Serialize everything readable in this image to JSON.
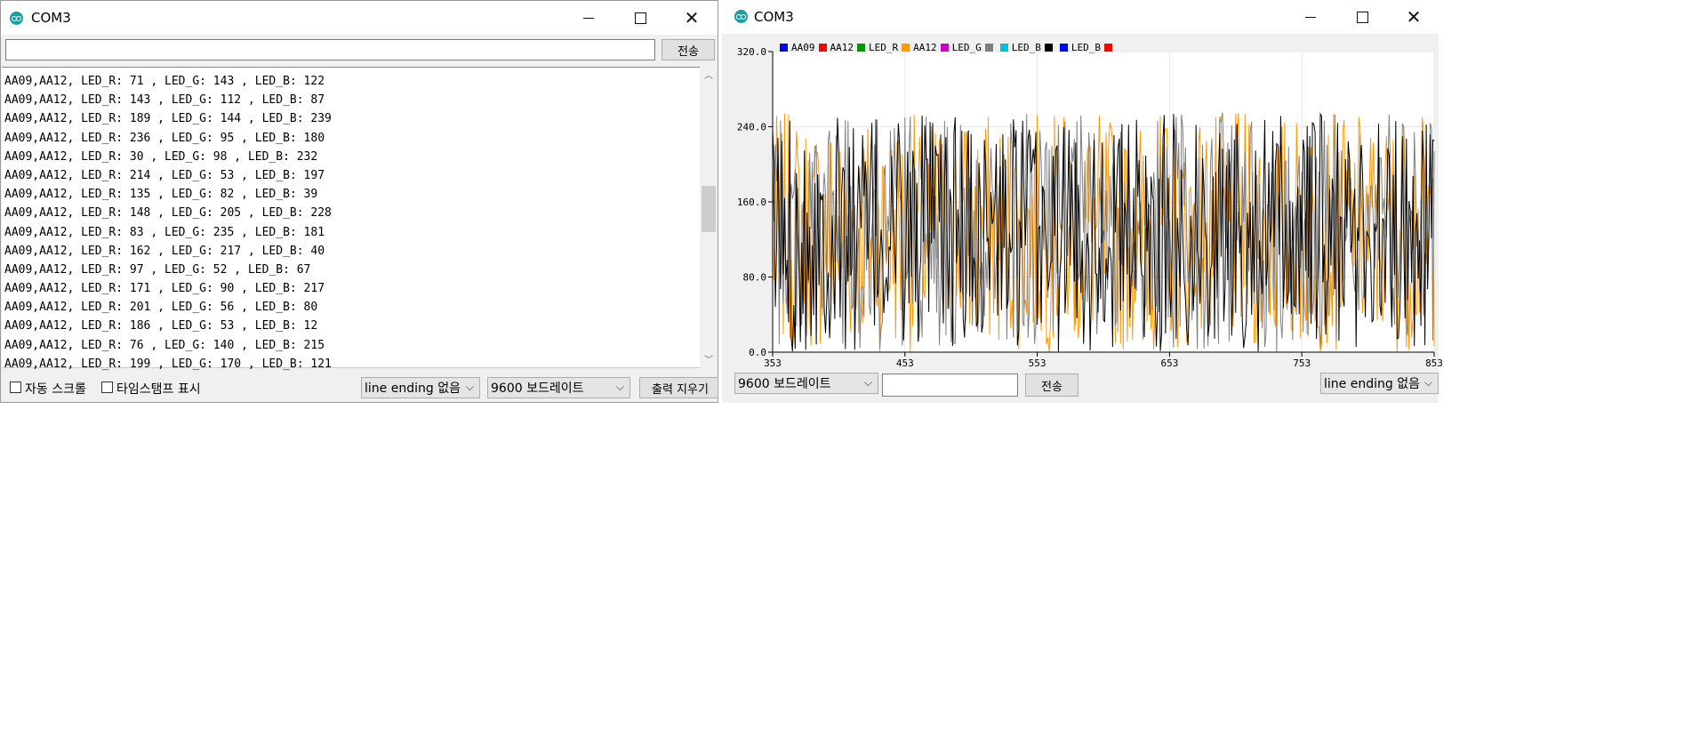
{
  "serial_monitor": {
    "title": "COM3",
    "send_input_value": "",
    "send_label": "전송",
    "lines": [
      "AA09,AA12, LED_R: 71 , LED_G: 143 , LED_B: 122",
      "AA09,AA12, LED_R: 143 , LED_G: 112 , LED_B: 87",
      "AA09,AA12, LED_R: 189 , LED_G: 144 , LED_B: 239",
      "AA09,AA12, LED_R: 236 , LED_G: 95 , LED_B: 180",
      "AA09,AA12, LED_R: 30 , LED_G: 98 , LED_B: 232",
      "AA09,AA12, LED_R: 214 , LED_G: 53 , LED_B: 197",
      "AA09,AA12, LED_R: 135 , LED_G: 82 , LED_B: 39",
      "AA09,AA12, LED_R: 148 , LED_G: 205 , LED_B: 228",
      "AA09,AA12, LED_R: 83 , LED_G: 235 , LED_B: 181",
      "AA09,AA12, LED_R: 162 , LED_G: 217 , LED_B: 40",
      "AA09,AA12, LED_R: 97 , LED_G: 52 , LED_B: 67",
      "AA09,AA12, LED_R: 171 , LED_G: 90 , LED_B: 217",
      "AA09,AA12, LED_R: 201 , LED_G: 56 , LED_B: 80",
      "AA09,AA12, LED_R: 186 , LED_G: 53 , LED_B: 12",
      "AA09,AA12, LED_R: 76 , LED_G: 140 , LED_B: 215",
      "AA09,AA12, LED_R: 199 , LED_G: 170 , LED_B: 121"
    ],
    "autoscroll_label": "자동 스크롤",
    "autoscroll_checked": false,
    "timestamp_label": "타임스탬프 표시",
    "timestamp_checked": false,
    "line_ending_value": "line ending 없음",
    "baud_value": "9600 보드레이트",
    "clear_label": "출력 지우기"
  },
  "serial_plotter": {
    "title": "COM3",
    "baud_value": "9600 보드레이트",
    "send_input_value": "",
    "send_label": "전송",
    "line_ending_value": "line ending 없음"
  },
  "chart_data": {
    "type": "line",
    "legend": [
      {
        "name": "AA09",
        "color": "#0000ff"
      },
      {
        "name": "AA12",
        "color": "#ff0000"
      },
      {
        "name": "LED_R",
        "color": "#009900"
      },
      {
        "name": "AA12",
        "color": "#ff9900"
      },
      {
        "name": "LED_G",
        "color": "#cc00cc"
      },
      {
        "name": "",
        "color": "#808080"
      },
      {
        "name": "LED_B",
        "color": "#00bfe0"
      },
      {
        "name": "",
        "color": "#000000"
      },
      {
        "name": "LED_B",
        "color": "#0000ff"
      },
      {
        "name": "",
        "color": "#ff0000"
      }
    ],
    "legend_placement": "top-left",
    "xlim": [
      353,
      853
    ],
    "ylim": [
      0,
      320
    ],
    "x_ticks": [
      "353",
      "453",
      "553",
      "653",
      "753",
      "853"
    ],
    "y_ticks": [
      "0.0",
      "80.0",
      "160.0",
      "240.0",
      "320.0"
    ],
    "grid": true,
    "series": [
      {
        "color": "#ff9900",
        "seed": 7,
        "min": 0,
        "max": 255
      },
      {
        "color": "#808080",
        "seed": 19,
        "min": 0,
        "max": 255
      },
      {
        "color": "#000000",
        "seed": 31,
        "min": 0,
        "max": 255
      }
    ]
  }
}
